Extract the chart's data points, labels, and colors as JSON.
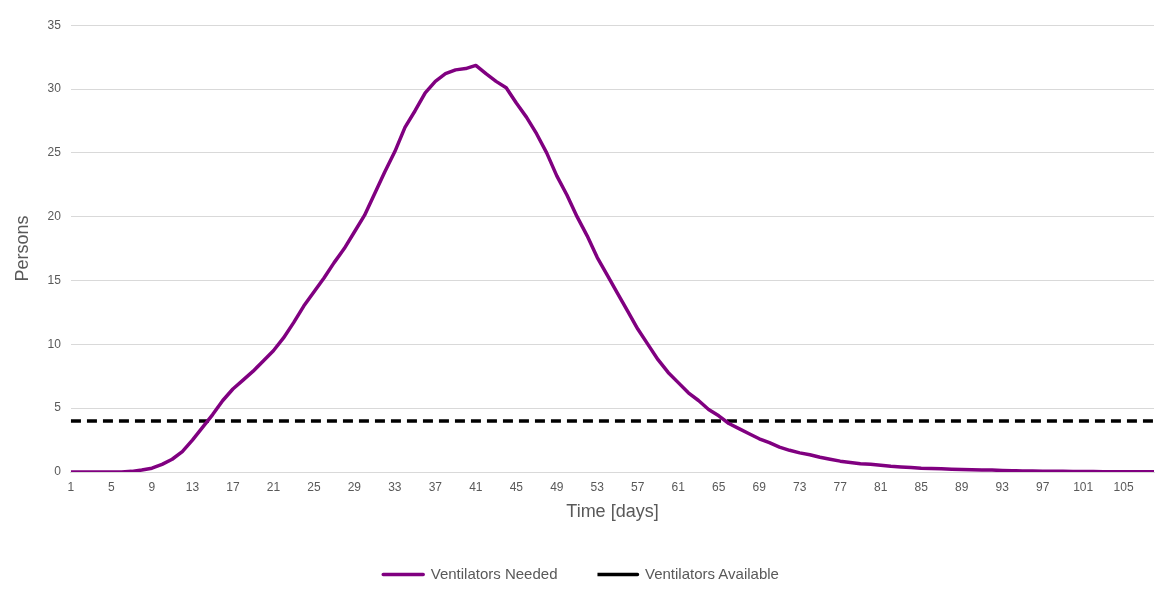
{
  "chart_data": {
    "type": "line",
    "xlabel": "Time [days]",
    "ylabel": "Persons",
    "categories": [
      "1",
      null,
      null,
      null,
      "5",
      null,
      null,
      null,
      "9",
      null,
      null,
      null,
      "13",
      null,
      null,
      null,
      "17",
      null,
      null,
      null,
      "21",
      null,
      null,
      null,
      "25",
      null,
      null,
      null,
      "29",
      null,
      null,
      null,
      "33",
      null,
      null,
      null,
      "37",
      null,
      null,
      null,
      "41",
      null,
      null,
      null,
      "45",
      null,
      null,
      null,
      "49",
      null,
      null,
      null,
      "53",
      null,
      null,
      null,
      "57",
      null,
      null,
      null,
      "61",
      null,
      null,
      null,
      "65",
      null,
      null,
      null,
      "69",
      null,
      null,
      null,
      "73",
      null,
      null,
      null,
      "77",
      null,
      null,
      null,
      "81",
      null,
      null,
      null,
      "85",
      null,
      null,
      null,
      "89",
      null,
      null,
      null,
      "93",
      null,
      null,
      null,
      "97",
      null,
      null,
      null,
      "101",
      null,
      null,
      null,
      "105",
      null,
      null,
      null
    ],
    "series": [
      {
        "name": "Ventilators Needed",
        "color": "#800080",
        "line_style": "solid",
        "values": [
          0,
          0,
          0,
          0,
          0,
          0,
          0.05,
          0.15,
          0.3,
          0.6,
          1.0,
          1.6,
          2.5,
          3.5,
          4.5,
          5.6,
          6.5,
          7.2,
          7.9,
          8.7,
          9.5,
          10.5,
          11.7,
          13.0,
          14.1,
          15.2,
          16.4,
          17.5,
          18.8,
          20.1,
          21.8,
          23.5,
          25.1,
          27.0,
          28.3,
          29.7,
          30.6,
          31.2,
          31.5,
          31.6,
          31.85,
          31.2,
          30.6,
          30.1,
          28.9,
          27.8,
          26.5,
          25.0,
          23.2,
          21.7,
          20.0,
          18.5,
          16.8,
          15.4,
          14.0,
          12.6,
          11.2,
          10.0,
          8.8,
          7.8,
          7.0,
          6.2,
          5.6,
          4.9,
          4.4,
          3.8,
          3.4,
          3.0,
          2.6,
          2.3,
          1.95,
          1.7,
          1.5,
          1.35,
          1.15,
          1.0,
          0.85,
          0.75,
          0.65,
          0.6,
          0.52,
          0.45,
          0.4,
          0.35,
          0.3,
          0.28,
          0.25,
          0.22,
          0.2,
          0.18,
          0.15,
          0.15,
          0.12,
          0.1,
          0.08,
          0.07,
          0.06,
          0.05,
          0.05,
          0.04,
          0.03,
          0.03,
          0.02,
          0.02,
          0.02,
          0.01,
          0.01,
          0.01
        ]
      },
      {
        "name": "Ventilators Available",
        "color": "#000000",
        "line_style": "dashed",
        "values": [
          4,
          4,
          4,
          4,
          4,
          4,
          4,
          4,
          4,
          4,
          4,
          4,
          4,
          4,
          4,
          4,
          4,
          4,
          4,
          4,
          4,
          4,
          4,
          4,
          4,
          4,
          4,
          4,
          4,
          4,
          4,
          4,
          4,
          4,
          4,
          4,
          4,
          4,
          4,
          4,
          4,
          4,
          4,
          4,
          4,
          4,
          4,
          4,
          4,
          4,
          4,
          4,
          4,
          4,
          4,
          4,
          4,
          4,
          4,
          4,
          4,
          4,
          4,
          4,
          4,
          4,
          4,
          4,
          4,
          4,
          4,
          4,
          4,
          4,
          4,
          4,
          4,
          4,
          4,
          4,
          4,
          4,
          4,
          4,
          4,
          4,
          4,
          4,
          4,
          4,
          4,
          4,
          4,
          4,
          4,
          4,
          4,
          4,
          4,
          4,
          4,
          4,
          4,
          4,
          4,
          4,
          4,
          4
        ]
      }
    ],
    "ylim": [
      0,
      35
    ],
    "yticks": [
      0,
      5,
      10,
      15,
      20,
      25,
      30,
      35
    ],
    "grid": "y",
    "legend": "bottom",
    "marker": "none"
  }
}
